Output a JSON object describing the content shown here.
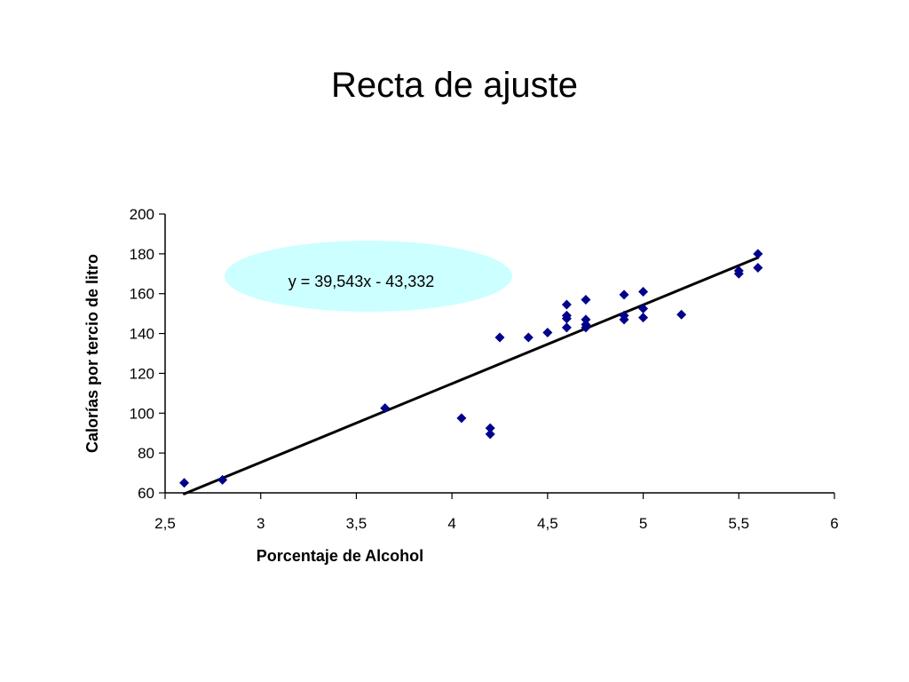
{
  "slide": {
    "title": "Recta de ajuste"
  },
  "colors": {
    "marker": "#00008b",
    "trendline": "#000000",
    "equation_bubble": "#ccffff",
    "axis": "#000000"
  },
  "chart_data": {
    "type": "scatter",
    "xlabel": "Porcentaje de Alcohol",
    "ylabel": "Calorías por tercio de litro",
    "xlim": [
      2.5,
      6
    ],
    "ylim": [
      60,
      200
    ],
    "x_ticks": [
      2.5,
      3,
      3.5,
      4,
      4.5,
      5,
      5.5,
      6
    ],
    "x_tick_labels": [
      "2,5",
      "3",
      "3,5",
      "4",
      "4,5",
      "5",
      "5,5",
      "6"
    ],
    "y_ticks": [
      60,
      80,
      100,
      120,
      140,
      160,
      180,
      200
    ],
    "y_tick_labels": [
      "60",
      "80",
      "100",
      "120",
      "140",
      "160",
      "180",
      "200"
    ],
    "grid": false,
    "legend": "none",
    "marker_shape": "diamond",
    "points": [
      {
        "x": 2.6,
        "y": 65
      },
      {
        "x": 2.8,
        "y": 66.5
      },
      {
        "x": 3.65,
        "y": 102.5
      },
      {
        "x": 4.05,
        "y": 97.5
      },
      {
        "x": 4.2,
        "y": 92.5
      },
      {
        "x": 4.2,
        "y": 89.5
      },
      {
        "x": 4.25,
        "y": 138
      },
      {
        "x": 4.4,
        "y": 138
      },
      {
        "x": 4.5,
        "y": 140.5
      },
      {
        "x": 4.6,
        "y": 154.5
      },
      {
        "x": 4.6,
        "y": 149
      },
      {
        "x": 4.6,
        "y": 147.5
      },
      {
        "x": 4.6,
        "y": 143
      },
      {
        "x": 4.7,
        "y": 157
      },
      {
        "x": 4.7,
        "y": 147
      },
      {
        "x": 4.7,
        "y": 144.5
      },
      {
        "x": 4.7,
        "y": 143
      },
      {
        "x": 4.9,
        "y": 159.5
      },
      {
        "x": 4.9,
        "y": 149
      },
      {
        "x": 4.9,
        "y": 147
      },
      {
        "x": 5.0,
        "y": 161
      },
      {
        "x": 5.0,
        "y": 152.5
      },
      {
        "x": 5.0,
        "y": 148
      },
      {
        "x": 5.2,
        "y": 149.5
      },
      {
        "x": 5.5,
        "y": 171.5
      },
      {
        "x": 5.5,
        "y": 170
      },
      {
        "x": 5.6,
        "y": 180
      },
      {
        "x": 5.6,
        "y": 173
      }
    ],
    "trendline": {
      "slope": 39.543,
      "intercept": -43.332,
      "x_range": [
        2.6,
        5.6
      ],
      "equation_label": "y = 39,543x - 43,332"
    }
  }
}
